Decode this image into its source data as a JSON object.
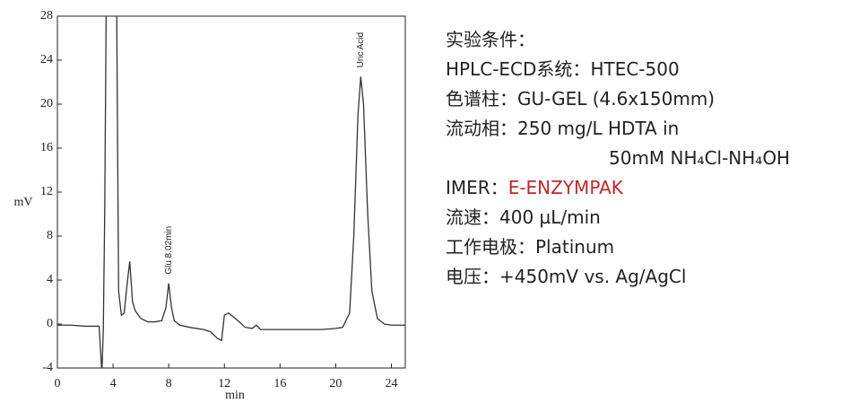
{
  "chart_data": {
    "type": "line",
    "ylabel": "mV",
    "xlabel": "min",
    "x": [
      0,
      1,
      2,
      3,
      3.2,
      3.3,
      3.4,
      3.6,
      3.8,
      4.0,
      4.2,
      4.4,
      4.6,
      4.8,
      5.0,
      5.2,
      5.4,
      5.6,
      6,
      6.5,
      7,
      7.5,
      7.8,
      8.0,
      8.2,
      8.4,
      8.8,
      9.5,
      10.5,
      11,
      11.5,
      11.8,
      12.0,
      12.3,
      12.8,
      13.5,
      14,
      14.3,
      14.6,
      15,
      16,
      18,
      19,
      20,
      20.5,
      21,
      21.3,
      21.6,
      21.8,
      22.0,
      22.3,
      22.6,
      23,
      23.5,
      24,
      25
    ],
    "values": [
      -0.1,
      -0.1,
      -0.2,
      -0.2,
      -4.5,
      -0.5,
      10,
      45,
      45,
      30,
      40,
      3,
      0.8,
      1,
      3.5,
      5.7,
      2,
      1.2,
      0.5,
      0.2,
      0.2,
      0.3,
      1.5,
      3.7,
      1.5,
      0.3,
      -0.1,
      -0.3,
      -0.5,
      -0.7,
      -1.3,
      -1.5,
      0.8,
      1,
      0.5,
      -0.3,
      -0.4,
      -0.1,
      -0.5,
      -0.5,
      -0.5,
      -0.5,
      -0.5,
      -0.4,
      -0.3,
      1,
      8,
      19,
      22.5,
      20,
      10,
      3,
      0.5,
      0,
      -0.1,
      -0.1
    ],
    "color": "#333333",
    "xlim": [
      0,
      25
    ],
    "xticks": [
      0,
      4,
      8,
      12,
      16,
      20,
      24
    ],
    "ylim": [
      -4,
      28
    ],
    "yticks": [
      -4,
      0,
      4,
      8,
      12,
      16,
      20,
      24,
      28
    ],
    "annotations": [
      {
        "text": "Glu 8.02min",
        "x": 8.0
      },
      {
        "text": "Uric Acid",
        "x": 21.8
      }
    ]
  },
  "conditions": {
    "heading": "实验条件：",
    "rows": [
      {
        "label": "HPLC-ECD系统：",
        "value": "HTEC-500"
      },
      {
        "label": "色谱柱：",
        "value": "GU-GEL (4.6x150mm)"
      },
      {
        "label": "流动相：",
        "value": "250 mg/L HDTA in"
      },
      {
        "value": "50mM NH₄Cl-NH₄OH"
      },
      {
        "label": "IMER：",
        "value": "E-ENZYMPAK"
      },
      {
        "label": "流速：",
        "value": "400 µL/min"
      },
      {
        "label": "工作电极：",
        "value": "Platinum"
      },
      {
        "label": "电压：",
        "value": "+450mV vs. Ag/AgCl"
      }
    ]
  }
}
